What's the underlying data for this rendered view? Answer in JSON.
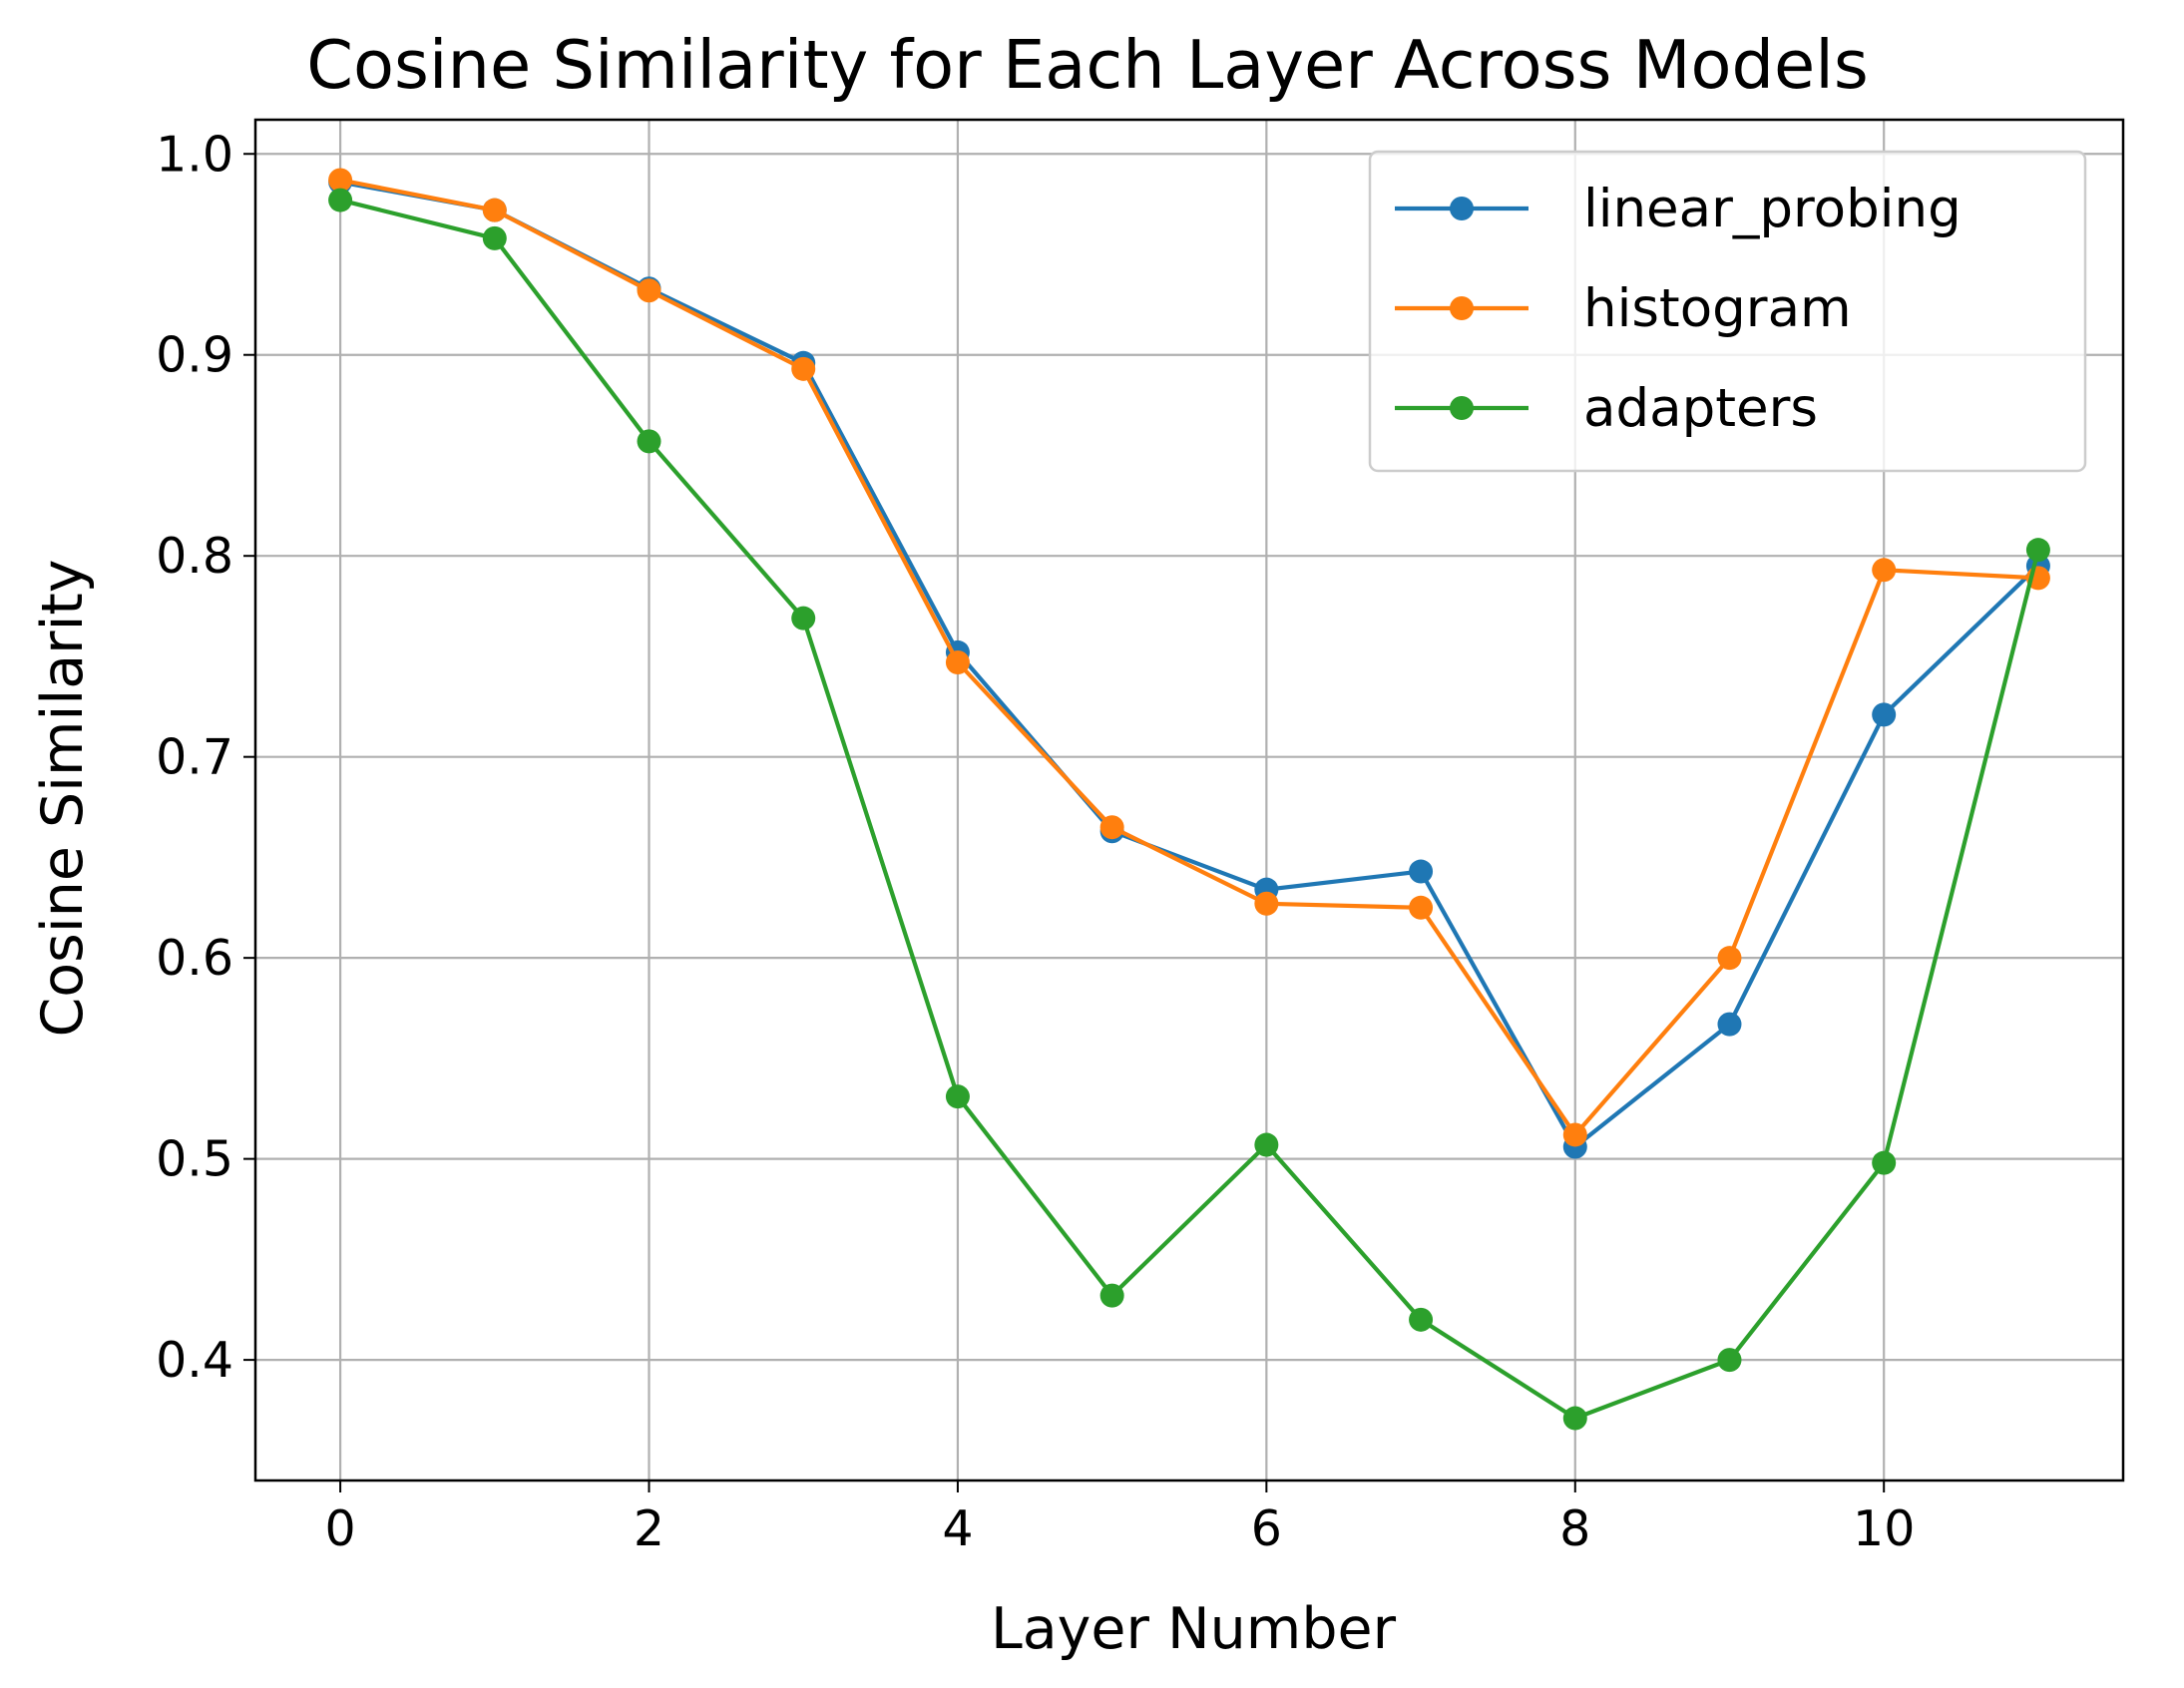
{
  "chart_data": {
    "type": "line",
    "title": "Cosine Similarity for Each Layer Across Models",
    "xlabel": "Layer Number",
    "ylabel": "Cosine Similarity",
    "x": [
      0,
      1,
      2,
      3,
      4,
      5,
      6,
      7,
      8,
      9,
      10,
      11
    ],
    "xlim": [
      -0.55,
      11.55
    ],
    "ylim": [
      0.34,
      1.017
    ],
    "xticks": [
      0,
      2,
      4,
      6,
      8,
      10
    ],
    "xtick_labels": [
      "0",
      "2",
      "4",
      "6",
      "8",
      "10"
    ],
    "yticks": [
      0.4,
      0.5,
      0.6,
      0.7,
      0.8,
      0.9,
      1.0
    ],
    "ytick_labels": [
      "0.4",
      "0.5",
      "0.6",
      "0.7",
      "0.8",
      "0.9",
      "1.0"
    ],
    "grid": true,
    "legend_position": "top-right",
    "marker": "circle",
    "series": [
      {
        "name": "linear_probing",
        "color": "#1f77b4",
        "values": [
          0.986,
          0.972,
          0.933,
          0.896,
          0.752,
          0.663,
          0.634,
          0.643,
          0.506,
          0.567,
          0.721,
          0.795
        ]
      },
      {
        "name": "histogram",
        "color": "#ff7f0e",
        "values": [
          0.987,
          0.972,
          0.932,
          0.893,
          0.747,
          0.665,
          0.627,
          0.625,
          0.512,
          0.6,
          0.793,
          0.789
        ]
      },
      {
        "name": "adapters",
        "color": "#2ca02c",
        "values": [
          0.977,
          0.958,
          0.857,
          0.769,
          0.531,
          0.432,
          0.507,
          0.42,
          0.371,
          0.4,
          0.498,
          0.803
        ]
      }
    ]
  }
}
